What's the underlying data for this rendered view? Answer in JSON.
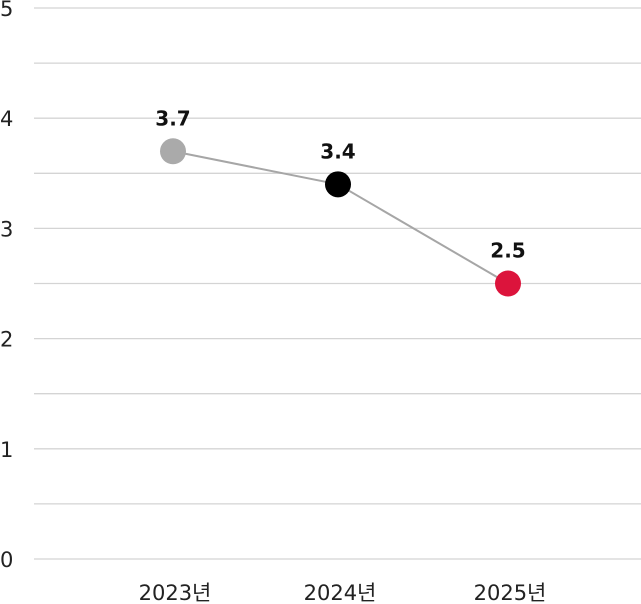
{
  "chart_data": {
    "type": "line",
    "categories": [
      "2023년",
      "2024년",
      "2025년"
    ],
    "series": [
      {
        "values": [
          3.7,
          3.4,
          2.5
        ],
        "point_colors": [
          "#aaaaaa",
          "#000000",
          "#dc143c"
        ],
        "line_color": "#a6a6a6"
      }
    ],
    "data_labels": [
      "3.7",
      "3.4",
      "2.5"
    ],
    "yticks": [
      "0",
      "1",
      "2",
      "3",
      "4",
      "5"
    ],
    "ylim": [
      0,
      5
    ],
    "grid": true,
    "legend": "none"
  }
}
